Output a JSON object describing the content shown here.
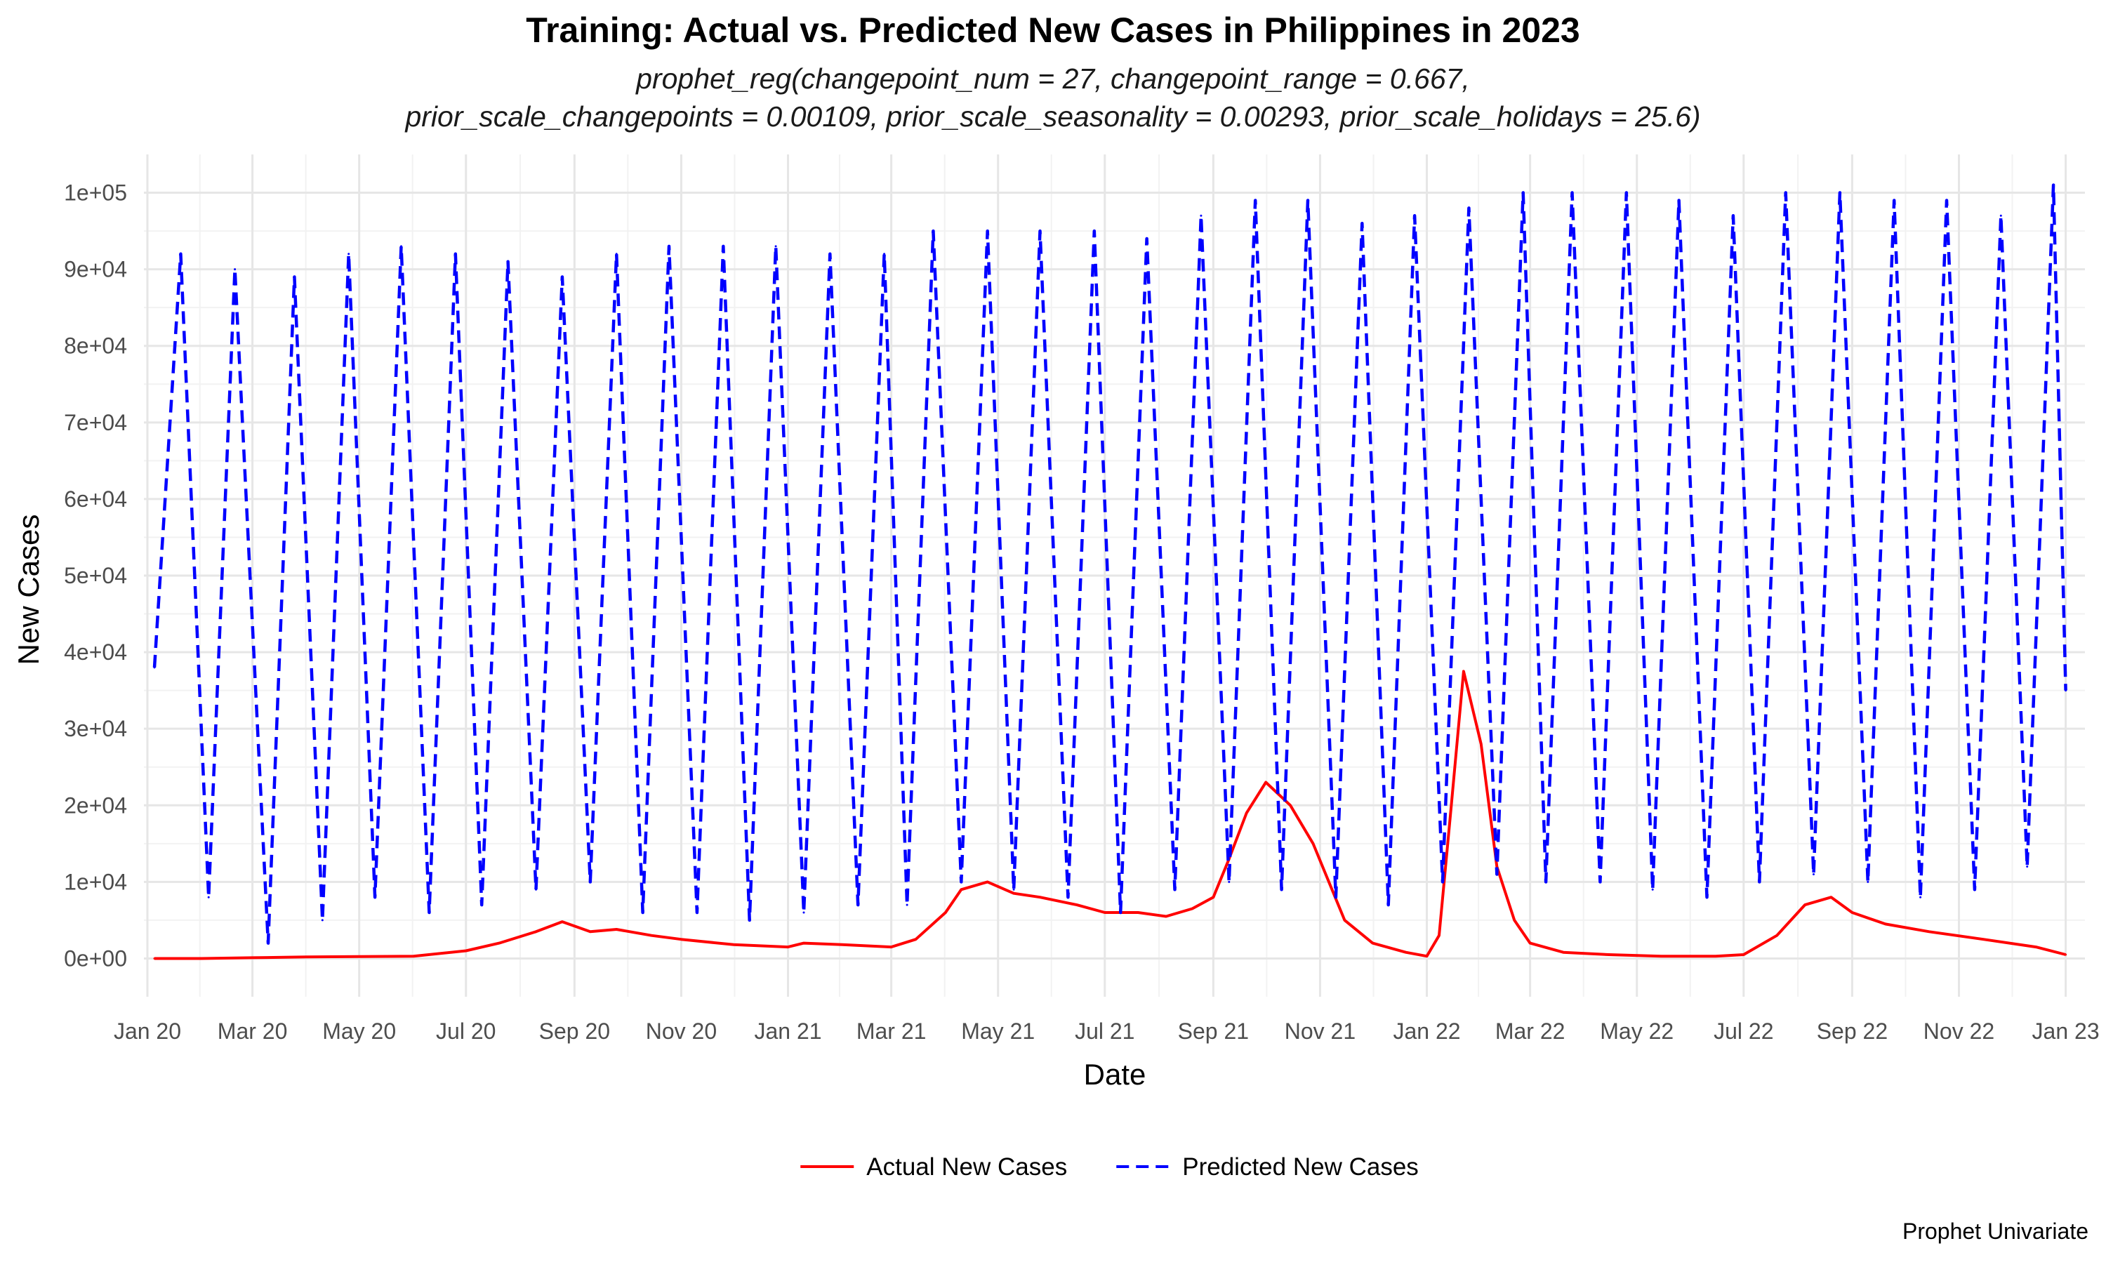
{
  "chart_data": {
    "type": "line",
    "title": "Training: Actual vs. Predicted New Cases in Philippines in 2023",
    "subtitle_lines": [
      "prophet_reg(changepoint_num = 27, changepoint_range = 0.667,",
      "prior_scale_changepoints = 0.00109, prior_scale_seasonality = 0.00293, prior_scale_holidays = 25.6)"
    ],
    "xlabel": "Date",
    "ylabel": "New Cases",
    "caption": "Prophet Univariate",
    "xlim": [
      "2019-12-30",
      "2023-01-12"
    ],
    "ylim": [
      -5000,
      105000
    ],
    "grid": true,
    "legend_position": "bottom",
    "x_ticks": [
      {
        "date": "2020-01-01",
        "label": "Jan 20"
      },
      {
        "date": "2020-03-01",
        "label": "Mar 20"
      },
      {
        "date": "2020-05-01",
        "label": "May 20"
      },
      {
        "date": "2020-07-01",
        "label": "Jul 20"
      },
      {
        "date": "2020-09-01",
        "label": "Sep 20"
      },
      {
        "date": "2020-11-01",
        "label": "Nov 20"
      },
      {
        "date": "2021-01-01",
        "label": "Jan 21"
      },
      {
        "date": "2021-03-01",
        "label": "Mar 21"
      },
      {
        "date": "2021-05-01",
        "label": "May 21"
      },
      {
        "date": "2021-07-01",
        "label": "Jul 21"
      },
      {
        "date": "2021-09-01",
        "label": "Sep 21"
      },
      {
        "date": "2021-11-01",
        "label": "Nov 21"
      },
      {
        "date": "2022-01-01",
        "label": "Jan 22"
      },
      {
        "date": "2022-03-01",
        "label": "Mar 22"
      },
      {
        "date": "2022-05-01",
        "label": "May 22"
      },
      {
        "date": "2022-07-01",
        "label": "Jul 22"
      },
      {
        "date": "2022-09-01",
        "label": "Sep 22"
      },
      {
        "date": "2022-11-01",
        "label": "Nov 22"
      },
      {
        "date": "2023-01-01",
        "label": "Jan 23"
      }
    ],
    "y_ticks": [
      {
        "value": 0,
        "label": "0e+00"
      },
      {
        "value": 10000,
        "label": "1e+04"
      },
      {
        "value": 20000,
        "label": "2e+04"
      },
      {
        "value": 30000,
        "label": "3e+04"
      },
      {
        "value": 40000,
        "label": "4e+04"
      },
      {
        "value": 50000,
        "label": "5e+04"
      },
      {
        "value": 60000,
        "label": "6e+04"
      },
      {
        "value": 70000,
        "label": "7e+04"
      },
      {
        "value": 80000,
        "label": "8e+04"
      },
      {
        "value": 90000,
        "label": "9e+04"
      },
      {
        "value": 100000,
        "label": "1e+05"
      }
    ],
    "series": [
      {
        "name": "Actual New Cases",
        "color": "#ff0000",
        "line_style": "solid",
        "x": [
          "2020-01-05",
          "2020-02-01",
          "2020-03-01",
          "2020-04-01",
          "2020-05-01",
          "2020-06-01",
          "2020-07-01",
          "2020-07-20",
          "2020-08-10",
          "2020-08-25",
          "2020-09-10",
          "2020-09-25",
          "2020-10-15",
          "2020-11-01",
          "2020-12-01",
          "2021-01-01",
          "2021-01-10",
          "2021-02-01",
          "2021-03-01",
          "2021-03-15",
          "2021-04-01",
          "2021-04-10",
          "2021-04-25",
          "2021-05-10",
          "2021-05-25",
          "2021-06-15",
          "2021-07-01",
          "2021-07-20",
          "2021-08-05",
          "2021-08-20",
          "2021-09-01",
          "2021-09-10",
          "2021-09-20",
          "2021-10-01",
          "2021-10-15",
          "2021-10-28",
          "2021-11-15",
          "2021-12-01",
          "2021-12-20",
          "2022-01-01",
          "2022-01-08",
          "2022-01-15",
          "2022-01-22",
          "2022-02-01",
          "2022-02-10",
          "2022-02-20",
          "2022-03-01",
          "2022-03-20",
          "2022-04-15",
          "2022-05-15",
          "2022-06-15",
          "2022-07-01",
          "2022-07-20",
          "2022-08-05",
          "2022-08-20",
          "2022-09-01",
          "2022-09-20",
          "2022-10-15",
          "2022-11-15",
          "2022-12-15",
          "2023-01-01"
        ],
        "y": [
          0,
          0,
          100,
          200,
          250,
          300,
          1000,
          2000,
          3500,
          4800,
          3500,
          3800,
          3000,
          2500,
          1800,
          1500,
          2000,
          1800,
          1500,
          2500,
          6000,
          9000,
          10000,
          8500,
          8000,
          7000,
          6000,
          6000,
          5500,
          6500,
          8000,
          13000,
          19000,
          23000,
          20000,
          15000,
          5000,
          2000,
          800,
          300,
          3000,
          20000,
          37500,
          28000,
          12000,
          5000,
          2000,
          800,
          500,
          300,
          300,
          500,
          3000,
          7000,
          8000,
          6000,
          4500,
          3500,
          2500,
          1500,
          500
        ]
      },
      {
        "name": "Predicted New Cases",
        "color": "#0000ff",
        "line_style": "dashed",
        "x": [
          "2020-01-05",
          "2020-01-20",
          "2020-02-05",
          "2020-02-20",
          "2020-03-10",
          "2020-03-25",
          "2020-04-10",
          "2020-04-25",
          "2020-05-10",
          "2020-05-25",
          "2020-06-10",
          "2020-06-25",
          "2020-07-10",
          "2020-07-25",
          "2020-08-10",
          "2020-08-25",
          "2020-09-10",
          "2020-09-25",
          "2020-10-10",
          "2020-10-25",
          "2020-11-10",
          "2020-11-25",
          "2020-12-10",
          "2020-12-25",
          "2021-01-10",
          "2021-01-25",
          "2021-02-10",
          "2021-02-25",
          "2021-03-10",
          "2021-03-25",
          "2021-04-10",
          "2021-04-25",
          "2021-05-10",
          "2021-05-25",
          "2021-06-10",
          "2021-06-25",
          "2021-07-10",
          "2021-07-25",
          "2021-08-10",
          "2021-08-25",
          "2021-09-10",
          "2021-09-25",
          "2021-10-10",
          "2021-10-25",
          "2021-11-10",
          "2021-11-25",
          "2021-12-10",
          "2021-12-25",
          "2022-01-10",
          "2022-01-25",
          "2022-02-10",
          "2022-02-25",
          "2022-03-10",
          "2022-03-25",
          "2022-04-10",
          "2022-04-25",
          "2022-05-10",
          "2022-05-25",
          "2022-06-10",
          "2022-06-25",
          "2022-07-10",
          "2022-07-25",
          "2022-08-10",
          "2022-08-25",
          "2022-09-10",
          "2022-09-25",
          "2022-10-10",
          "2022-10-25",
          "2022-11-10",
          "2022-11-25",
          "2022-12-10",
          "2022-12-25",
          "2023-01-01"
        ],
        "y": [
          38000,
          92000,
          8000,
          90000,
          2000,
          89000,
          5000,
          92000,
          8000,
          93000,
          6000,
          92000,
          7000,
          91000,
          9000,
          89000,
          10000,
          92000,
          6000,
          93000,
          6000,
          93000,
          5000,
          93000,
          6000,
          92000,
          7000,
          92000,
          7000,
          95000,
          10000,
          95000,
          9000,
          95000,
          8000,
          95000,
          6000,
          94000,
          9000,
          97000,
          10000,
          99000,
          9000,
          99000,
          8000,
          96000,
          7000,
          97000,
          10000,
          98000,
          11000,
          100000,
          10000,
          100000,
          10000,
          100000,
          9000,
          99000,
          8000,
          97000,
          10000,
          100000,
          11000,
          100000,
          10000,
          99000,
          8000,
          99000,
          9000,
          97000,
          12000,
          101000,
          35000
        ]
      }
    ]
  }
}
